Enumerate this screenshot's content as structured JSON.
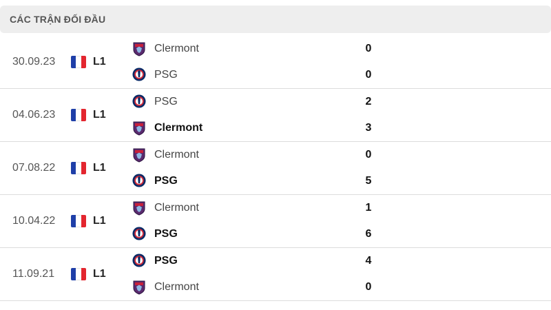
{
  "section_title": "CÁC TRẬN ĐỐI ĐẦU",
  "matches": [
    {
      "date": "30.09.23",
      "league": "L1",
      "team1": {
        "name": "Clermont",
        "logo": "clermont",
        "score": "0",
        "winner": false
      },
      "team2": {
        "name": "PSG",
        "logo": "psg",
        "score": "0",
        "winner": false
      }
    },
    {
      "date": "04.06.23",
      "league": "L1",
      "team1": {
        "name": "PSG",
        "logo": "psg",
        "score": "2",
        "winner": false
      },
      "team2": {
        "name": "Clermont",
        "logo": "clermont",
        "score": "3",
        "winner": true
      }
    },
    {
      "date": "07.08.22",
      "league": "L1",
      "team1": {
        "name": "Clermont",
        "logo": "clermont",
        "score": "0",
        "winner": false
      },
      "team2": {
        "name": "PSG",
        "logo": "psg",
        "score": "5",
        "winner": true
      }
    },
    {
      "date": "10.04.22",
      "league": "L1",
      "team1": {
        "name": "Clermont",
        "logo": "clermont",
        "score": "1",
        "winner": false
      },
      "team2": {
        "name": "PSG",
        "logo": "psg",
        "score": "6",
        "winner": true
      }
    },
    {
      "date": "11.09.21",
      "league": "L1",
      "team1": {
        "name": "PSG",
        "logo": "psg",
        "score": "4",
        "winner": true
      },
      "team2": {
        "name": "Clermont",
        "logo": "clermont",
        "score": "0",
        "winner": false
      }
    }
  ]
}
